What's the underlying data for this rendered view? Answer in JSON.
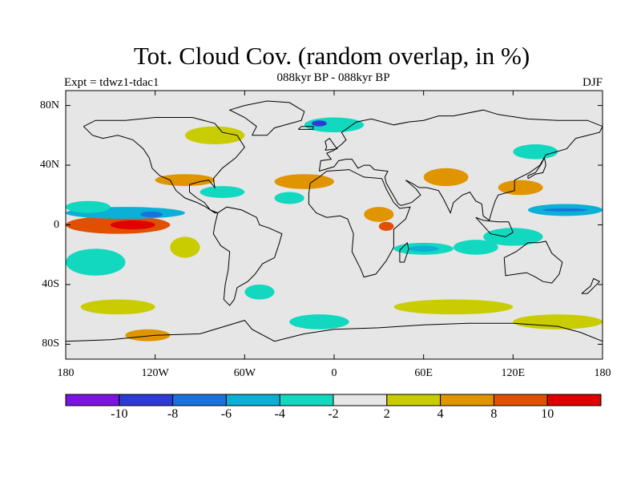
{
  "header": {
    "title": "Tot. Cloud Cov. (random overlap, in %)",
    "subtitle": "088kyr BP - 088kyr BP",
    "expt": "Expt = tdwz1-tdac1",
    "season": "DJF"
  },
  "map": {
    "projection": "cylindrical-equidistant",
    "lon_range": [
      -180,
      180
    ],
    "lat_range": [
      -90,
      90
    ],
    "background_color": "#e6e6e6",
    "coastline_color": "#000000",
    "x_tick_labels": [
      "180",
      "120W",
      "60W",
      "0",
      "60E",
      "120E",
      "180"
    ],
    "x_tick_values": [
      -180,
      -120,
      -60,
      0,
      60,
      120,
      180
    ],
    "y_tick_labels": [
      "80N",
      "40N",
      "0",
      "40S",
      "80S"
    ],
    "y_tick_values": [
      80,
      40,
      0,
      -40,
      -80
    ]
  },
  "colorbar": {
    "colors": [
      "#7b14e0",
      "#2c3bd6",
      "#1a72de",
      "#0ab0d6",
      "#12d8c0",
      "#e6e6e6",
      "#c9cc00",
      "#e09500",
      "#e05000",
      "#e00000"
    ],
    "labels": [
      "-10",
      "-8",
      "-6",
      "-4",
      "-2",
      "2",
      "4",
      "8",
      "10"
    ]
  },
  "chart_data": {
    "type": "heatmap",
    "title": "Tot. Cloud Cov. (random overlap, in %)",
    "subtitle": "088kyr BP - 088kyr BP",
    "variable": "Tot. Cloud Cov. (random overlap, in %)",
    "season": "DJF",
    "levels": [
      -10,
      -8,
      -6,
      -4,
      -2,
      2,
      4,
      8,
      10
    ],
    "features": [
      {
        "lon": [
          -180,
          -110
        ],
        "lat": [
          -6,
          6
        ],
        "value": 9
      },
      {
        "lon": [
          -150,
          -120
        ],
        "lat": [
          -3,
          3
        ],
        "value": 11
      },
      {
        "lon": [
          -180,
          -100
        ],
        "lat": [
          4,
          12
        ],
        "value": -5
      },
      {
        "lon": [
          -130,
          -115
        ],
        "lat": [
          5,
          9
        ],
        "value": -8
      },
      {
        "lon": [
          -180,
          -150
        ],
        "lat": [
          8,
          16
        ],
        "value": -3
      },
      {
        "lon": [
          -180,
          -140
        ],
        "lat": [
          -34,
          -16
        ],
        "value": -4
      },
      {
        "lon": [
          -110,
          -90
        ],
        "lat": [
          -22,
          -8
        ],
        "value": 3
      },
      {
        "lon": [
          -120,
          -80
        ],
        "lat": [
          26,
          34
        ],
        "value": 6
      },
      {
        "lon": [
          -90,
          -60
        ],
        "lat": [
          18,
          26
        ],
        "value": -3
      },
      {
        "lon": [
          -40,
          0
        ],
        "lat": [
          24,
          34
        ],
        "value": 6
      },
      {
        "lon": [
          -40,
          -20
        ],
        "lat": [
          14,
          22
        ],
        "value": -3
      },
      {
        "lon": [
          -20,
          20
        ],
        "lat": [
          62,
          72
        ],
        "value": -3
      },
      {
        "lon": [
          -15,
          -5
        ],
        "lat": [
          66,
          70
        ],
        "value": -10
      },
      {
        "lon": [
          20,
          40
        ],
        "lat": [
          2,
          12
        ],
        "value": 6
      },
      {
        "lon": [
          30,
          40
        ],
        "lat": [
          -4,
          2
        ],
        "value": 8
      },
      {
        "lon": [
          40,
          80
        ],
        "lat": [
          -20,
          -12
        ],
        "value": -3
      },
      {
        "lon": [
          50,
          70
        ],
        "lat": [
          -18,
          -14
        ],
        "value": -6
      },
      {
        "lon": [
          80,
          110
        ],
        "lat": [
          -20,
          -10
        ],
        "value": -3
      },
      {
        "lon": [
          60,
          90
        ],
        "lat": [
          26,
          38
        ],
        "value": 5
      },
      {
        "lon": [
          110,
          140
        ],
        "lat": [
          20,
          30
        ],
        "value": 6
      },
      {
        "lon": [
          120,
          150
        ],
        "lat": [
          44,
          54
        ],
        "value": -4
      },
      {
        "lon": [
          130,
          180
        ],
        "lat": [
          6,
          14
        ],
        "value": -6
      },
      {
        "lon": [
          140,
          170
        ],
        "lat": [
          9,
          11
        ],
        "value": -8
      },
      {
        "lon": [
          100,
          140
        ],
        "lat": [
          -14,
          -2
        ],
        "value": -3
      },
      {
        "lon": [
          -170,
          -120
        ],
        "lat": [
          -60,
          -50
        ],
        "value": 3
      },
      {
        "lon": [
          -140,
          -110
        ],
        "lat": [
          -78,
          -70
        ],
        "value": 4
      },
      {
        "lon": [
          -30,
          10
        ],
        "lat": [
          -70,
          -60
        ],
        "value": -3
      },
      {
        "lon": [
          40,
          120
        ],
        "lat": [
          -60,
          -50
        ],
        "value": 3
      },
      {
        "lon": [
          120,
          180
        ],
        "lat": [
          -70,
          -60
        ],
        "value": 3
      },
      {
        "lon": [
          -100,
          -60
        ],
        "lat": [
          54,
          66
        ],
        "value": 3
      },
      {
        "lon": [
          -60,
          -40
        ],
        "lat": [
          -50,
          -40
        ],
        "value": -3
      }
    ]
  }
}
